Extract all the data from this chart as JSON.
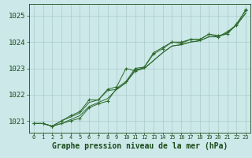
{
  "title": "Graphe pression niveau de la mer (hPa)",
  "x_values": [
    0,
    1,
    2,
    3,
    4,
    5,
    6,
    7,
    8,
    9,
    10,
    11,
    12,
    13,
    14,
    15,
    16,
    17,
    18,
    19,
    20,
    21,
    22,
    23
  ],
  "line1": [
    1020.9,
    1020.9,
    1020.8,
    1020.9,
    1021.0,
    1021.1,
    1021.5,
    1021.65,
    1021.75,
    1022.25,
    1022.5,
    1023.0,
    1023.05,
    1023.6,
    1023.8,
    1024.0,
    1023.95,
    1024.1,
    1024.1,
    1024.3,
    1024.25,
    1024.3,
    1024.7,
    1025.2
  ],
  "line2": [
    1020.9,
    1020.9,
    1020.8,
    1020.9,
    1021.05,
    1021.2,
    1021.55,
    1021.7,
    1021.85,
    1022.2,
    1022.45,
    1022.95,
    1023.0,
    1023.3,
    1023.6,
    1023.85,
    1023.9,
    1024.0,
    1024.05,
    1024.2,
    1024.2,
    1024.35,
    1024.65,
    1025.1
  ],
  "line3": [
    1020.9,
    1020.9,
    1020.8,
    1021.0,
    1021.15,
    1021.3,
    1021.7,
    1021.8,
    1022.15,
    1022.2,
    1022.45,
    1022.9,
    1023.0,
    1023.3,
    1023.6,
    1023.85,
    1023.9,
    1024.0,
    1024.05,
    1024.2,
    1024.2,
    1024.35,
    1024.65,
    1025.1
  ],
  "line4": [
    1020.9,
    1020.9,
    1020.8,
    1021.0,
    1021.2,
    1021.35,
    1021.8,
    1021.8,
    1022.2,
    1022.3,
    1023.0,
    1022.9,
    1023.05,
    1023.55,
    1023.75,
    1024.0,
    1024.0,
    1024.1,
    1024.1,
    1024.3,
    1024.2,
    1024.4,
    1024.65,
    1025.25
  ],
  "ylim": [
    1020.55,
    1025.45
  ],
  "yticks": [
    1021,
    1022,
    1023,
    1024,
    1025
  ],
  "xticks": [
    0,
    1,
    2,
    3,
    4,
    5,
    6,
    7,
    8,
    9,
    10,
    11,
    12,
    13,
    14,
    15,
    16,
    17,
    18,
    19,
    20,
    21,
    22,
    23
  ],
  "line_color": "#2d6a2d",
  "marker_color": "#2d6a2d",
  "bg_color": "#cce8e8",
  "grid_color": "#aacccc",
  "axis_color": "#1a4a1a",
  "title_color": "#1a4a1a",
  "title_fontsize": 7.0,
  "ytick_fontsize": 6.5,
  "xtick_fontsize": 5.0
}
